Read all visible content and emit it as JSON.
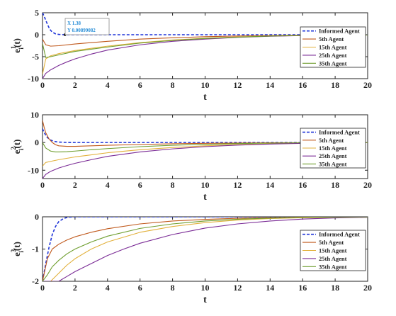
{
  "colors": {
    "informed": "#1f34d8",
    "agent5": "#c0591c",
    "agent15": "#e2b13c",
    "agent25": "#7b2c96",
    "agent35": "#6f9e2f",
    "axis": "#222222",
    "datatip_text": "#2a8fd8",
    "datatip_border": "#8a8a8a"
  },
  "chart_data": [
    {
      "type": "line",
      "title": "",
      "xlabel": "t",
      "ylabel": "e_i^1(t)",
      "xlim": [
        0,
        20
      ],
      "ylim": [
        -10,
        5
      ],
      "xticks": [
        0,
        2,
        4,
        6,
        8,
        10,
        12,
        14,
        16,
        18,
        20
      ],
      "yticks": [
        5,
        0,
        -5,
        -10
      ],
      "legend_position": "right",
      "datatip": {
        "x_label": "X 1.38",
        "y_label": "Y 0.00899082",
        "x": 1.38,
        "y": 0.00899082
      },
      "series": [
        {
          "name": "Informed Agent",
          "dashed": true,
          "x": [
            0,
            0.1,
            0.2,
            0.3,
            0.4,
            0.5,
            0.6,
            0.8,
            1.0,
            1.2,
            1.38,
            1.6,
            2,
            3,
            5,
            10,
            15,
            20
          ],
          "y": [
            5,
            4.2,
            3.3,
            2.4,
            1.6,
            1.0,
            0.6,
            0.2,
            0.07,
            0.02,
            0.009,
            0.003,
            0,
            0,
            0,
            0,
            0,
            0
          ]
        },
        {
          "name": "5th Agent",
          "x": [
            0,
            0.2,
            0.5,
            1,
            2,
            4,
            6,
            8,
            10,
            12,
            14,
            16,
            18,
            20
          ],
          "y": [
            -1,
            -2.3,
            -2.6,
            -2.5,
            -2.1,
            -1.5,
            -1.0,
            -0.7,
            -0.45,
            -0.3,
            -0.18,
            -0.1,
            -0.05,
            -0.02
          ]
        },
        {
          "name": "15th Agent",
          "x": [
            0,
            0.2,
            0.5,
            1,
            2,
            4,
            6,
            8,
            10,
            12,
            14,
            16,
            18,
            20
          ],
          "y": [
            -9,
            -5.5,
            -4.8,
            -4.3,
            -3.6,
            -2.6,
            -1.8,
            -1.2,
            -0.8,
            -0.5,
            -0.3,
            -0.15,
            -0.08,
            -0.03
          ]
        },
        {
          "name": "25th Agent",
          "x": [
            0,
            0.2,
            0.5,
            1,
            1.5,
            2,
            3,
            4,
            6,
            8,
            10,
            12,
            14,
            16,
            18,
            20
          ],
          "y": [
            -10,
            -8.8,
            -8.0,
            -7.0,
            -6.2,
            -5.5,
            -4.4,
            -3.5,
            -2.3,
            -1.5,
            -1.0,
            -0.6,
            -0.35,
            -0.2,
            -0.1,
            -0.05
          ]
        },
        {
          "name": "35th Agent",
          "x": [
            0,
            0.2,
            0.5,
            1,
            2,
            4,
            6,
            8,
            10,
            12,
            14,
            16,
            18,
            20
          ],
          "y": [
            -2,
            -5.2,
            -5.0,
            -4.6,
            -3.8,
            -2.8,
            -1.9,
            -1.3,
            -0.85,
            -0.55,
            -0.32,
            -0.18,
            -0.09,
            -0.04
          ]
        }
      ]
    },
    {
      "type": "line",
      "title": "",
      "xlabel": "t",
      "ylabel": "e_i^2(t)",
      "xlim": [
        0,
        20
      ],
      "ylim": [
        -13,
        10
      ],
      "xticks": [
        0,
        2,
        4,
        6,
        8,
        10,
        12,
        14,
        16,
        18,
        20
      ],
      "yticks": [
        10,
        0,
        -10
      ],
      "legend_position": "right",
      "series": [
        {
          "name": "Informed Agent",
          "dashed": true,
          "x": [
            0,
            0.1,
            0.2,
            0.3,
            0.5,
            0.7,
            1.0,
            1.5,
            2,
            3,
            5,
            10,
            15,
            20
          ],
          "y": [
            5,
            3.6,
            2.6,
            1.8,
            0.9,
            0.4,
            0.15,
            0.03,
            0,
            0,
            0,
            0,
            0,
            0
          ]
        },
        {
          "name": "5th Agent",
          "x": [
            0,
            0.1,
            0.2,
            0.4,
            0.6,
            0.8,
            1.0,
            1.5,
            2,
            3,
            4,
            6,
            8,
            10,
            14,
            20
          ],
          "y": [
            8,
            5.5,
            3.5,
            1.3,
            0,
            -0.8,
            -1.2,
            -1.4,
            -1.4,
            -1.2,
            -1.0,
            -0.7,
            -0.45,
            -0.3,
            -0.1,
            -0.02
          ]
        },
        {
          "name": "15th Agent",
          "x": [
            0,
            0.2,
            0.5,
            1,
            2,
            4,
            6,
            8,
            10,
            12,
            14,
            16,
            18,
            20
          ],
          "y": [
            -8.5,
            -7.2,
            -6.8,
            -6.2,
            -5.2,
            -3.7,
            -2.6,
            -1.8,
            -1.2,
            -0.75,
            -0.45,
            -0.25,
            -0.12,
            -0.05
          ]
        },
        {
          "name": "25th Agent",
          "x": [
            0,
            0.2,
            0.5,
            1,
            1.5,
            2,
            3,
            4,
            6,
            8,
            10,
            12,
            14,
            16,
            18,
            20
          ],
          "y": [
            -13,
            -11.5,
            -10.4,
            -9.2,
            -8.3,
            -7.5,
            -6.2,
            -5.0,
            -3.4,
            -2.3,
            -1.5,
            -0.95,
            -0.55,
            -0.3,
            -0.15,
            -0.06
          ]
        },
        {
          "name": "35th Agent",
          "x": [
            0,
            0.2,
            0.5,
            0.8,
            1.0,
            1.5,
            2,
            3,
            4,
            6,
            8,
            10,
            12,
            14,
            16,
            20
          ],
          "y": [
            0,
            -2,
            -3.1,
            -3.4,
            -3.4,
            -3.3,
            -3.1,
            -2.6,
            -2.2,
            -1.5,
            -1.0,
            -0.65,
            -0.4,
            -0.22,
            -0.12,
            -0.03
          ]
        }
      ]
    },
    {
      "type": "line",
      "title": "",
      "xlabel": "t",
      "ylabel": "e_i^3(t)",
      "xlim": [
        0,
        20
      ],
      "ylim": [
        -2,
        0
      ],
      "xticks": [
        0,
        2,
        4,
        6,
        8,
        10,
        12,
        14,
        16,
        18,
        20
      ],
      "yticks": [
        0,
        -1,
        -2
      ],
      "legend_position": "right",
      "series": [
        {
          "name": "Informed Agent",
          "dashed": true,
          "x": [
            0,
            0.2,
            0.4,
            0.6,
            0.8,
            1.0,
            1.3,
            1.6,
            2,
            3,
            5,
            10,
            15,
            20
          ],
          "y": [
            -2,
            -1.45,
            -0.95,
            -0.55,
            -0.3,
            -0.15,
            -0.05,
            -0.01,
            0,
            0,
            0,
            0,
            0,
            0
          ]
        },
        {
          "name": "5th Agent",
          "x": [
            0,
            0.3,
            0.6,
            1,
            1.5,
            2,
            3,
            4,
            6,
            8,
            10,
            12,
            14,
            16,
            18,
            20
          ],
          "y": [
            -2,
            -1.3,
            -1.0,
            -0.85,
            -0.72,
            -0.62,
            -0.48,
            -0.37,
            -0.22,
            -0.13,
            -0.08,
            -0.045,
            -0.025,
            -0.012,
            -0.006,
            -0.003
          ]
        },
        {
          "name": "15th Agent",
          "x": [
            0,
            0.5,
            1,
            1.5,
            2,
            3,
            4,
            6,
            8,
            10,
            12,
            14,
            16,
            18,
            20
          ],
          "y": [
            -2,
            -2,
            -1.75,
            -1.5,
            -1.3,
            -1.0,
            -0.78,
            -0.48,
            -0.3,
            -0.18,
            -0.1,
            -0.055,
            -0.03,
            -0.015,
            -0.007
          ]
        },
        {
          "name": "25th Agent",
          "x": [
            0,
            1,
            1.5,
            2,
            3,
            4,
            5,
            6,
            8,
            10,
            12,
            14,
            16,
            18,
            20
          ],
          "y": [
            -2,
            -2,
            -1.85,
            -1.7,
            -1.45,
            -1.2,
            -1.0,
            -0.82,
            -0.55,
            -0.35,
            -0.22,
            -0.13,
            -0.07,
            -0.035,
            -0.015
          ]
        },
        {
          "name": "35th Agent",
          "x": [
            0,
            0.3,
            0.6,
            1,
            1.5,
            2,
            3,
            4,
            6,
            8,
            10,
            12,
            14,
            16,
            18,
            20
          ],
          "y": [
            -2,
            -1.8,
            -1.55,
            -1.35,
            -1.15,
            -1.0,
            -0.78,
            -0.6,
            -0.36,
            -0.22,
            -0.13,
            -0.075,
            -0.04,
            -0.02,
            -0.01,
            -0.004
          ]
        }
      ]
    }
  ]
}
